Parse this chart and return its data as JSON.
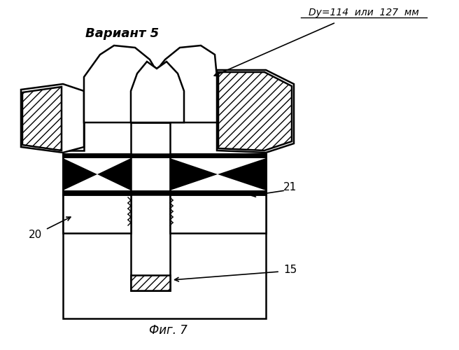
{
  "title": "Фиг. 7",
  "variant_label": "Вариант 5",
  "du_label": "Dy=114  или  127  мм",
  "label_20": "20",
  "label_21": "21",
  "label_15": "15",
  "bg_color": "#ffffff",
  "line_color": "#000000",
  "figsize": [
    6.56,
    5.0
  ],
  "dpi": 100
}
